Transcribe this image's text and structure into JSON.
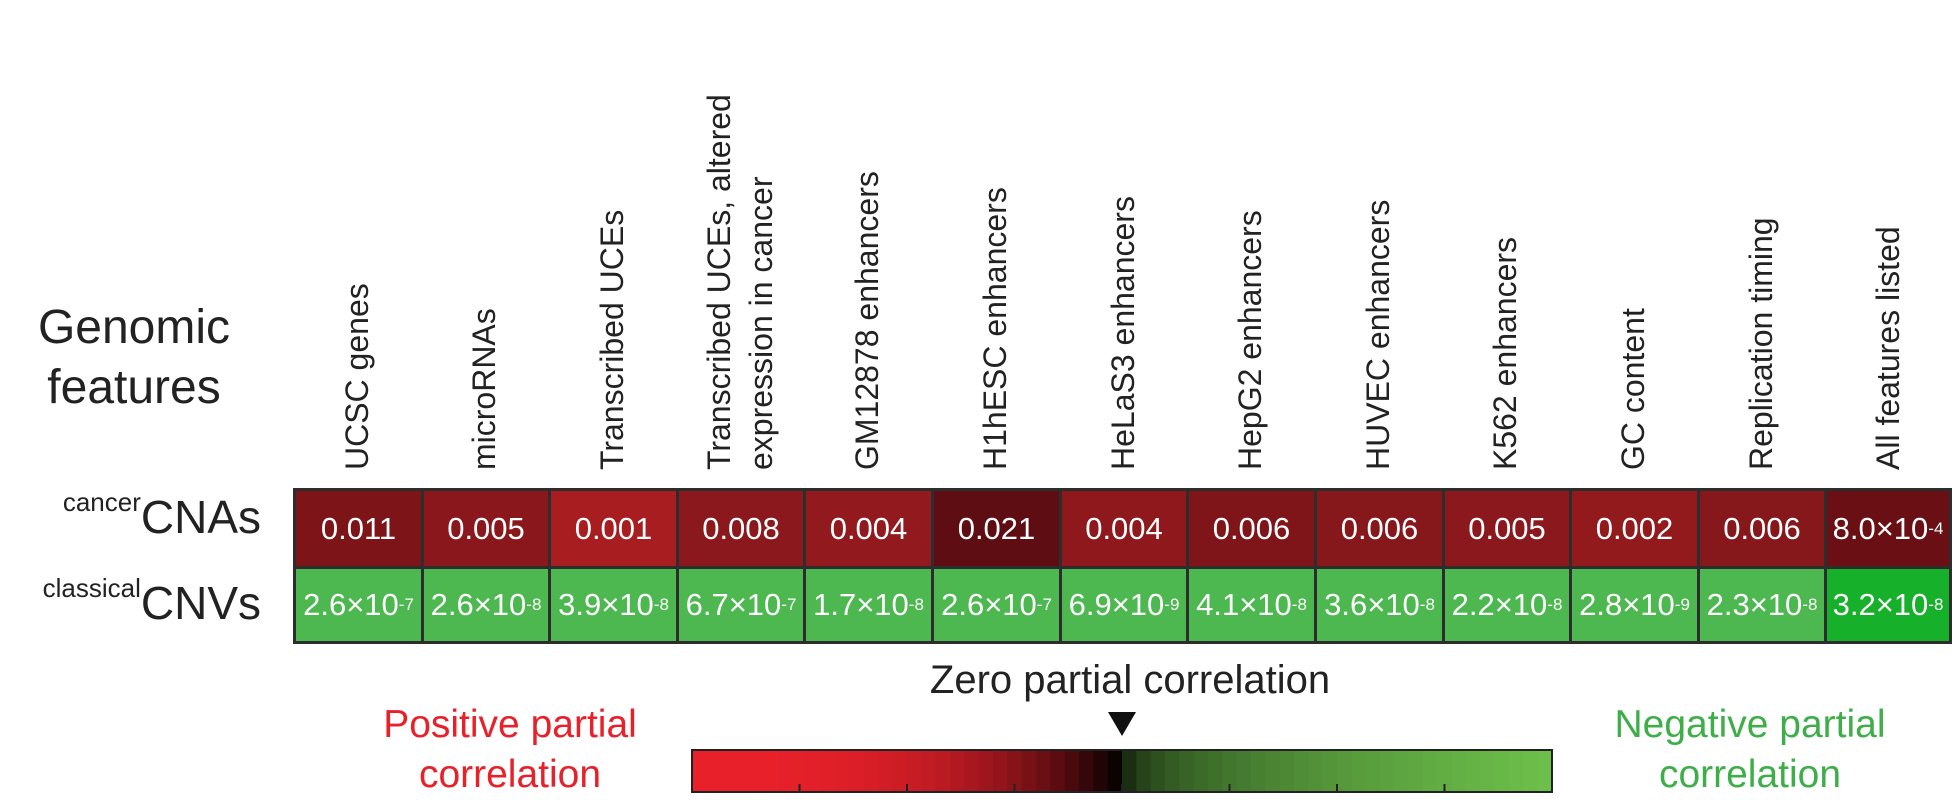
{
  "chart_data": {
    "type": "heatmap",
    "row_header": [
      "Genomic",
      "features"
    ],
    "columns": [
      [
        "UCSC genes"
      ],
      [
        "microRNAs"
      ],
      [
        "Transcribed UCEs"
      ],
      [
        "Transcribed UCEs, altered",
        "expression in cancer"
      ],
      [
        "GM12878 enhancers"
      ],
      [
        "H1hESC enhancers"
      ],
      [
        "HeLaS3 enhancers"
      ],
      [
        "HepG2 enhancers"
      ],
      [
        "HUVEC enhancers"
      ],
      [
        "K562 enhancers"
      ],
      [
        "GC content"
      ],
      [
        "Replication timing"
      ],
      [
        "All features listed"
      ]
    ],
    "rows": [
      {
        "label_sup": "cancer",
        "label_main": "CNAs",
        "values": [
          {
            "m": "0.011",
            "e": ""
          },
          {
            "m": "0.005",
            "e": ""
          },
          {
            "m": "0.001",
            "e": ""
          },
          {
            "m": "0.008",
            "e": ""
          },
          {
            "m": "0.004",
            "e": ""
          },
          {
            "m": "0.021",
            "e": ""
          },
          {
            "m": "0.004",
            "e": ""
          },
          {
            "m": "0.006",
            "e": ""
          },
          {
            "m": "0.006",
            "e": ""
          },
          {
            "m": "0.005",
            "e": ""
          },
          {
            "m": "0.002",
            "e": ""
          },
          {
            "m": "0.006",
            "e": ""
          },
          {
            "m": "8.0×10",
            "e": "-4"
          }
        ],
        "colors": [
          "#7d1418",
          "#8a171b",
          "#a81d20",
          "#8a181c",
          "#92191d",
          "#5e0e12",
          "#8e181c",
          "#801519",
          "#86171b",
          "#8b181c",
          "#921a1d",
          "#86171b",
          "#6a1014"
        ]
      },
      {
        "label_sup": "classical",
        "label_main": "CNVs",
        "values": [
          {
            "m": "2.6×10",
            "e": "-7"
          },
          {
            "m": "2.6×10",
            "e": "-8"
          },
          {
            "m": "3.9×10",
            "e": "-8"
          },
          {
            "m": "6.7×10",
            "e": "-7"
          },
          {
            "m": "1.7×10",
            "e": "-8"
          },
          {
            "m": "2.6×10",
            "e": "-7"
          },
          {
            "m": "6.9×10",
            "e": "-9"
          },
          {
            "m": "4.1×10",
            "e": "-8"
          },
          {
            "m": "3.6×10",
            "e": "-8"
          },
          {
            "m": "2.2×10",
            "e": "-8"
          },
          {
            "m": "2.8×10",
            "e": "-9"
          },
          {
            "m": "2.3×10",
            "e": "-8"
          },
          {
            "m": "3.2×10",
            "e": "-8"
          }
        ],
        "colors": [
          "#4cb84f",
          "#4cb84f",
          "#4cb84f",
          "#4cb84f",
          "#4cb84f",
          "#4cb84f",
          "#4cb84f",
          "#4cb84f",
          "#4cb84f",
          "#4cb84f",
          "#4cb84f",
          "#4cb84f",
          "#16b02a"
        ]
      }
    ],
    "legend": {
      "positive_label": [
        "Positive partial",
        "correlation"
      ],
      "negative_label": [
        "Negative partial",
        "correlation"
      ],
      "zero_label": "Zero partial correlation",
      "positive_color": "#e8202a",
      "zero_color": "#000000",
      "negative_color": "#6cc04a"
    }
  }
}
